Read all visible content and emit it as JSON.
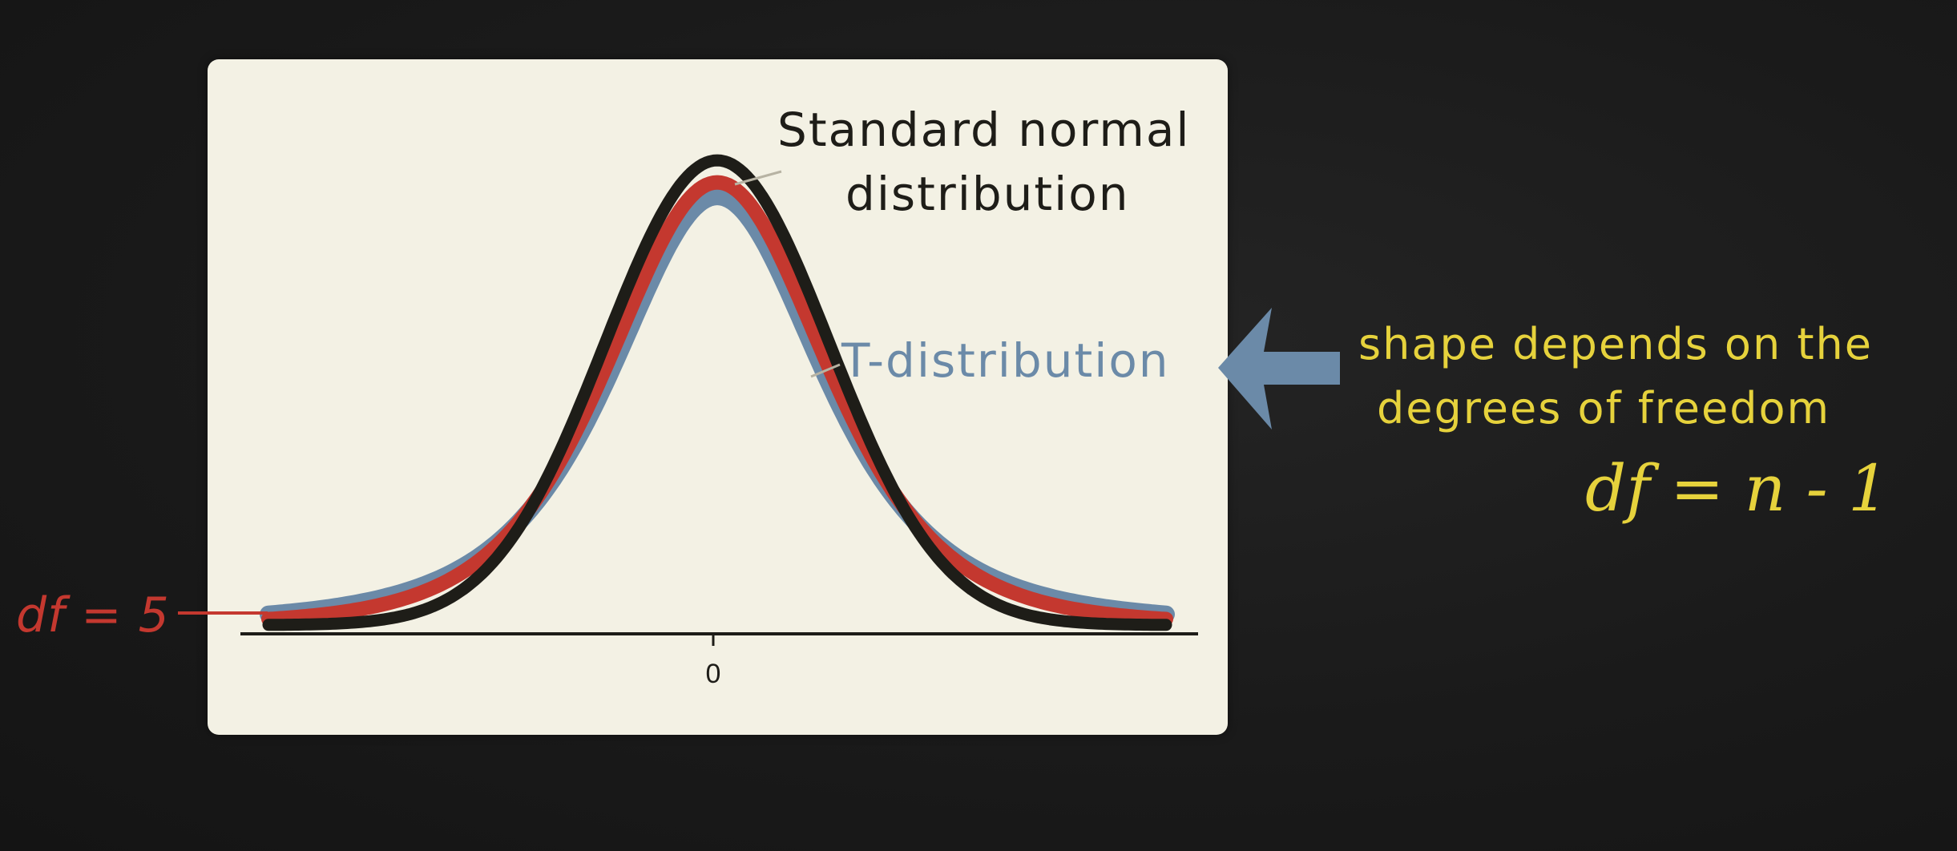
{
  "chart_data": {
    "type": "line",
    "x_tick_labels": [
      "0"
    ],
    "xlim": [
      -4,
      4
    ],
    "series": [
      {
        "name": "Standard normal distribution",
        "color": "#1e1d18",
        "peak": 0.399
      },
      {
        "name": "df = 5",
        "color": "#c4382f",
        "peak": 0.38
      },
      {
        "name": "T-distribution",
        "color": "#6b8aa8",
        "peak": 0.368
      }
    ]
  },
  "annotations": {
    "normal_label_line1": "Standard normal",
    "normal_label_line2": "distribution",
    "t_label": "T-distribution",
    "df_label": "df = 5",
    "note_line1": "shape depends on the",
    "note_line2": "degrees of freedom",
    "formula": "df = n - 1"
  },
  "colors": {
    "background": "#1a1a1a",
    "panel": "#f3f1e4",
    "normal": "#1e1d18",
    "t_red": "#c4382f",
    "t_blue": "#6b8aa8",
    "note_yellow": "#e6d23c"
  },
  "icons": {
    "arrow": "arrow-left-icon"
  }
}
